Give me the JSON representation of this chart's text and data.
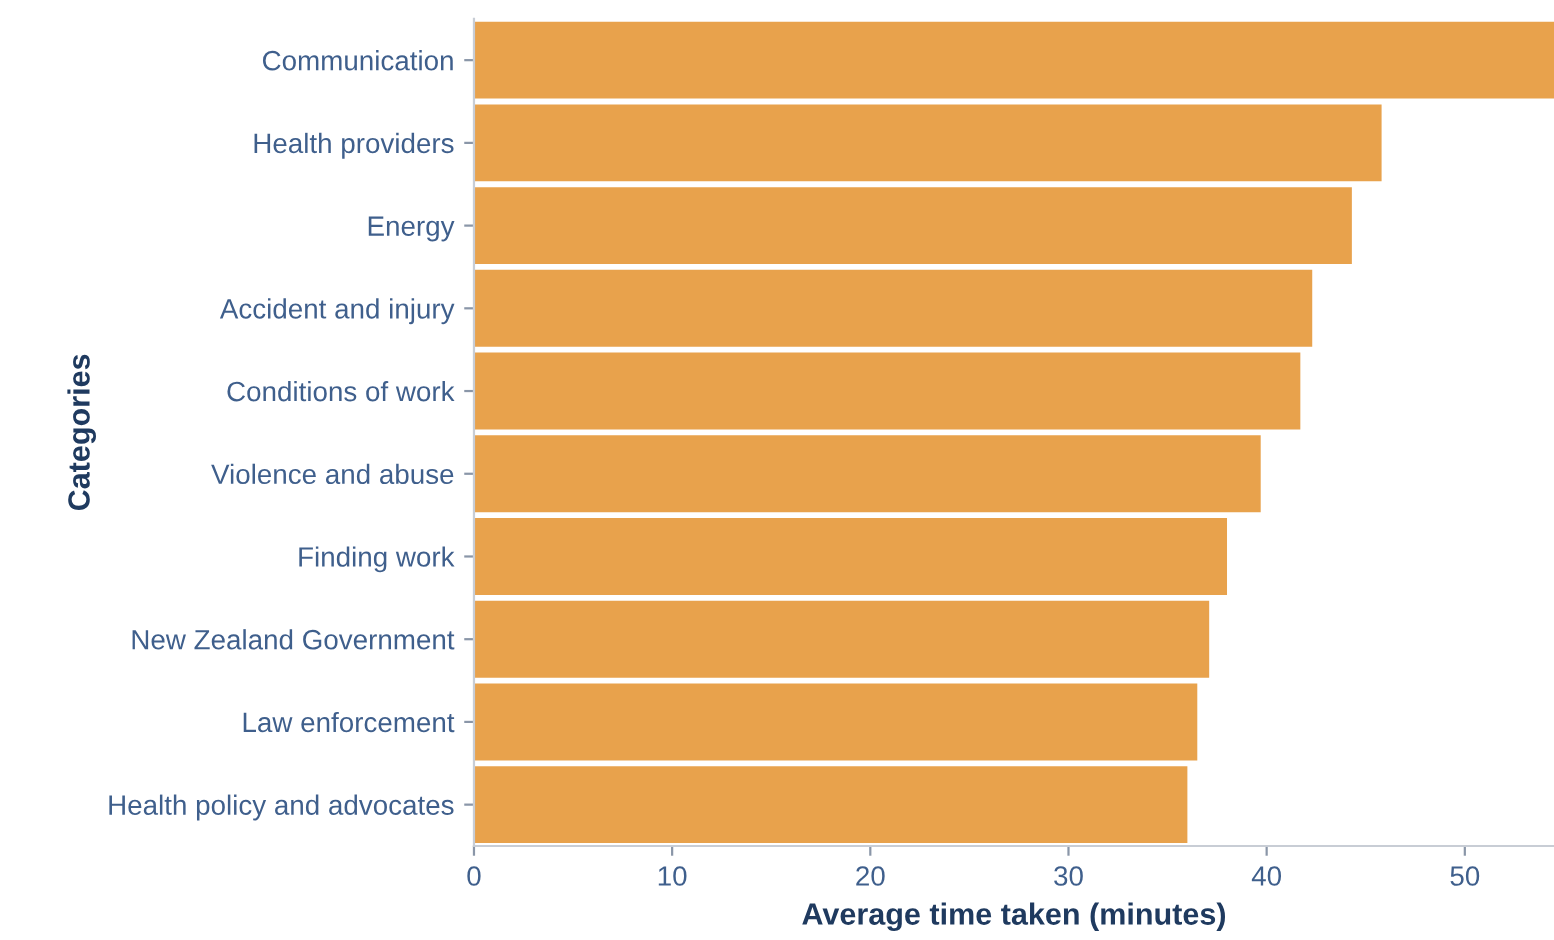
{
  "chart_data": {
    "type": "bar",
    "orientation": "horizontal",
    "xlabel": "Average time taken (minutes)",
    "ylabel": "Categories",
    "categories": [
      "Communication",
      "Health providers",
      "Energy",
      "Accident and injury",
      "Conditions of work",
      "Violence and abuse",
      "Finding work",
      "New Zealand Government",
      "Law enforcement",
      "Health policy and advocates"
    ],
    "values": [
      54.5,
      45.8,
      44.3,
      42.3,
      41.7,
      39.7,
      38.0,
      37.1,
      36.5,
      36.0
    ],
    "color": "#e8a24c",
    "xlim": [
      0,
      54.5
    ],
    "xticks": [
      0,
      10,
      20,
      30,
      40,
      50
    ],
    "grid": false
  }
}
